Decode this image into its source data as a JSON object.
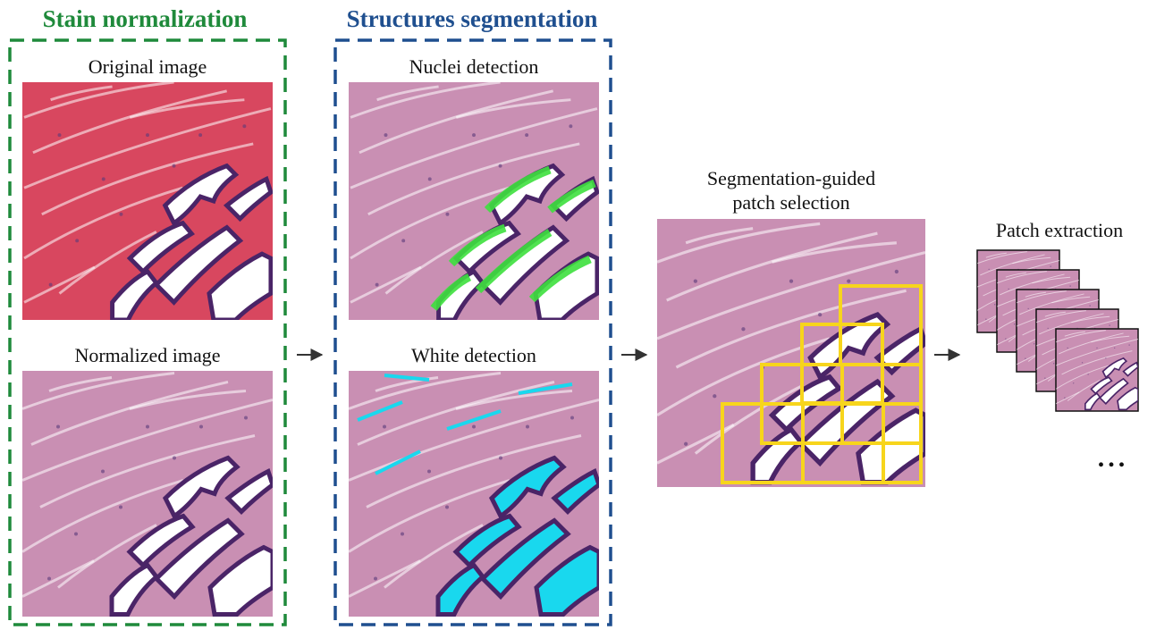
{
  "sections": [
    {
      "title": "Stain normalization",
      "panels": [
        "Original image",
        "Normalized image"
      ]
    },
    {
      "title": "Structures segmentation",
      "panels": [
        "Nuclei detection",
        "White detection"
      ]
    }
  ],
  "patch_selection": {
    "label": [
      "Segmentation-guided",
      "patch selection"
    ]
  },
  "patch_extraction": {
    "label": "Patch extraction",
    "ellipsis": "..."
  }
}
